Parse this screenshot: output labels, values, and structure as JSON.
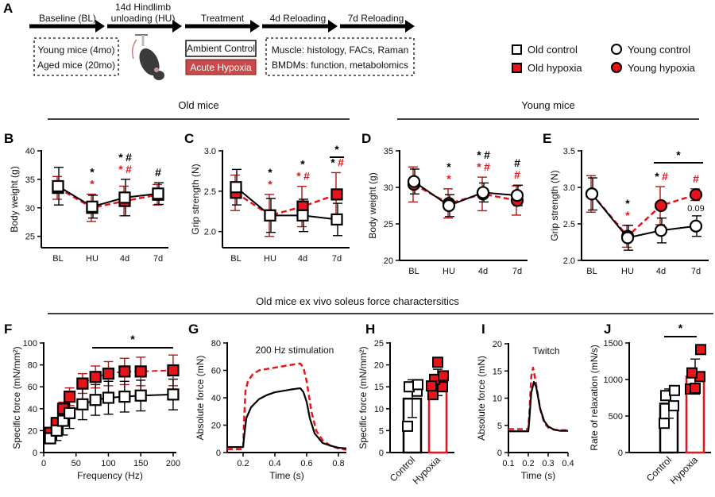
{
  "colors": {
    "control": "#000000",
    "hypoxia": "#e8141b",
    "hypoxia_err": "#b01818",
    "hypoxia_box": "#c94a4a"
  },
  "panel_a": {
    "letter": "A",
    "steps": [
      "Baseline (BL)",
      "14d Hindlimb",
      "unloading (HU)",
      "Treatment",
      "4d Reloading",
      "7d Reloading"
    ],
    "baseline_box": [
      "Young mice (4mo)",
      "Aged mice (20mo)"
    ],
    "treatment_options": [
      "Ambient Control",
      "Acute Hypoxia"
    ],
    "readout_box": [
      "Muscle: histology, FACs, Raman",
      "BMDMs: function, metabolomics"
    ],
    "image": "hindlimb-unloaded-mouse"
  },
  "legend": [
    {
      "label": "Old control",
      "marker": "square",
      "fill": "open"
    },
    {
      "label": "Old hypoxia",
      "marker": "square",
      "fill": "red"
    },
    {
      "label": "Young control",
      "marker": "circle",
      "fill": "open"
    },
    {
      "label": "Young hypoxia",
      "marker": "circle",
      "fill": "red"
    }
  ],
  "section_titles": {
    "old": "Old mice",
    "young": "Young mice",
    "exvivo": "Old mice ex vivo soleus force charactersitics"
  },
  "chart_data": [
    {
      "panel": "B",
      "type": "line",
      "ylabel": "Body weight (g)",
      "categories": [
        "BL",
        "HU",
        "4d",
        "7d"
      ],
      "ylim": [
        23,
        40
      ],
      "yticks": [
        25,
        30,
        35,
        40
      ],
      "marker": "square",
      "series": [
        {
          "name": "Old control",
          "values": [
            33.8,
            30.2,
            31.8,
            32.5
          ],
          "err": [
            3.3,
            2.0,
            3.2,
            1.9
          ]
        },
        {
          "name": "Old hypoxia",
          "values": [
            33.5,
            30.0,
            31.2,
            32.3
          ],
          "err": [
            2.0,
            2.4,
            2.6,
            1.8
          ]
        }
      ],
      "annotations": [
        {
          "cat": 1,
          "lines": [
            [
              [
                "*",
                "control"
              ]
            ],
            [
              [
                "*",
                "hypoxia"
              ]
            ]
          ]
        },
        {
          "cat": 2,
          "lines": [
            [
              [
                "*",
                "control"
              ],
              [
                "#",
                "control"
              ]
            ],
            [
              [
                "*",
                "hypoxia"
              ],
              [
                "#",
                "hypoxia"
              ]
            ]
          ]
        },
        {
          "cat": 3,
          "lines": [
            [
              [
                "#",
                "control"
              ]
            ]
          ]
        }
      ]
    },
    {
      "panel": "C",
      "type": "line",
      "ylabel": "Grip strength (N)",
      "categories": [
        "BL",
        "HU",
        "4d",
        "7d"
      ],
      "ylim": [
        1.8,
        3.0
      ],
      "yticks": [
        2.0,
        2.5,
        3.0
      ],
      "marker": "square",
      "series": [
        {
          "name": "Old control",
          "values": [
            2.55,
            2.2,
            2.2,
            2.15
          ],
          "err": [
            0.22,
            0.21,
            0.2,
            0.2
          ]
        },
        {
          "name": "Old hypoxia",
          "values": [
            2.48,
            2.2,
            2.31,
            2.46
          ],
          "err": [
            0.22,
            0.26,
            0.25,
            0.27
          ]
        }
      ],
      "annotations": [
        {
          "cat": 1,
          "lines": [
            [
              [
                "*",
                "control"
              ]
            ],
            [
              [
                "*",
                "hypoxia"
              ]
            ]
          ]
        },
        {
          "cat": 2,
          "lines": [
            [
              [
                "*",
                "control"
              ]
            ],
            [
              [
                "*",
                "hypoxia"
              ],
              [
                "#",
                "hypoxia"
              ]
            ]
          ]
        },
        {
          "cat": 3,
          "lines": [
            [
              [
                "*",
                "control"
              ],
              [
                "#",
                "hypoxia"
              ]
            ]
          ]
        }
      ],
      "brackets": [
        {
          "from": 3,
          "to": 3,
          "text": "*"
        }
      ]
    },
    {
      "panel": "D",
      "type": "line",
      "ylabel": "Body weight (g)",
      "categories": [
        "BL",
        "HU",
        "4d",
        "7d"
      ],
      "ylim": [
        20,
        35
      ],
      "yticks": [
        20,
        25,
        30,
        35
      ],
      "marker": "circle",
      "series": [
        {
          "name": "Young control",
          "values": [
            30.8,
            27.5,
            29.3,
            28.9
          ],
          "err": [
            1.7,
            1.5,
            1.3,
            1.4
          ]
        },
        {
          "name": "Young hypoxia",
          "values": [
            30.4,
            27.8,
            29.1,
            28.2
          ],
          "err": [
            2.4,
            2.0,
            2.3,
            2.0
          ]
        }
      ],
      "annotations": [
        {
          "cat": 1,
          "lines": [
            [
              [
                "*",
                "control"
              ]
            ],
            [
              [
                "*",
                "hypoxia"
              ]
            ]
          ]
        },
        {
          "cat": 2,
          "lines": [
            [
              [
                "*",
                "control"
              ],
              [
                "#",
                "control"
              ]
            ],
            [
              [
                "*",
                "hypoxia"
              ],
              [
                "#",
                "hypoxia"
              ]
            ]
          ]
        },
        {
          "cat": 3,
          "lines": [
            [
              [
                "#",
                "control"
              ]
            ],
            [
              [
                "#",
                "hypoxia"
              ]
            ]
          ]
        }
      ]
    },
    {
      "panel": "E",
      "type": "line",
      "ylabel": "Grip strength (N)",
      "categories": [
        "BL",
        "HU",
        "4d",
        "7d"
      ],
      "ylim": [
        2.0,
        3.5
      ],
      "yticks": [
        2.0,
        2.5,
        3.0,
        3.5
      ],
      "marker": "circle",
      "series": [
        {
          "name": "Young control",
          "values": [
            2.91,
            2.31,
            2.41,
            2.47
          ],
          "err": [
            0.22,
            0.17,
            0.17,
            0.14
          ]
        },
        {
          "name": "Young hypoxia",
          "values": [
            2.91,
            2.33,
            2.75,
            2.9
          ],
          "err": [
            0.25,
            0.15,
            0.26,
            0.08
          ]
        }
      ],
      "annotations": [
        {
          "cat": 1,
          "lines": [
            [
              [
                "*",
                "control"
              ]
            ],
            [
              [
                "*",
                "hypoxia"
              ]
            ]
          ]
        },
        {
          "cat": 2,
          "lines": [
            [
              [
                "*",
                "control"
              ],
              [
                "#",
                "hypoxia"
              ]
            ]
          ]
        },
        {
          "cat": 3,
          "lines": [
            [
              [
                "#",
                "hypoxia"
              ]
            ]
          ]
        }
      ],
      "value_labels": [
        {
          "cat": 3,
          "text": "0.09"
        }
      ],
      "brackets": [
        {
          "from": 2,
          "to": 3,
          "text": "*"
        }
      ]
    },
    {
      "panel": "F",
      "type": "scatter-line",
      "xlabel": "Frequency (Hz)",
      "ylabel": "Specific force (mN/mm²)",
      "xlim": [
        0,
        205
      ],
      "xticks": [
        0,
        50,
        100,
        150,
        200
      ],
      "ylim": [
        0,
        100
      ],
      "yticks": [
        0,
        20,
        40,
        60,
        80,
        100
      ],
      "marker": "square",
      "x": [
        10,
        20,
        30,
        40,
        60,
        80,
        100,
        125,
        150,
        200
      ],
      "series": [
        {
          "name": "Old control",
          "values": [
            13,
            20,
            29,
            36,
            44,
            48,
            50,
            51,
            52,
            53
          ],
          "err": [
            4,
            9,
            13,
            14,
            14,
            14,
            15,
            14,
            14,
            14
          ]
        },
        {
          "name": "Old hypoxia",
          "values": [
            18,
            27,
            40,
            51,
            63,
            69,
            72,
            74,
            74,
            75
          ],
          "err": [
            3,
            4,
            6,
            8,
            9,
            10,
            11,
            12,
            13,
            14
          ]
        }
      ],
      "brackets": [
        {
          "from": 75,
          "to": 200,
          "text": "*"
        }
      ]
    },
    {
      "panel": "G",
      "type": "line",
      "title": "200 Hz stimulation",
      "xlabel": "Time (s)",
      "ylabel": "Absolute force (mN)",
      "xlim": [
        0.1,
        0.85
      ],
      "xticks": [
        0.2,
        0.4,
        0.6,
        0.8
      ],
      "ylim": [
        0,
        80
      ],
      "yticks": [
        0,
        20,
        40,
        60,
        80
      ],
      "series": [
        {
          "name": "Old control",
          "x": [
            0.1,
            0.2,
            0.205,
            0.22,
            0.25,
            0.3,
            0.35,
            0.4,
            0.5,
            0.56,
            0.58,
            0.6,
            0.62,
            0.65,
            0.7,
            0.75,
            0.8,
            0.85
          ],
          "y": [
            4,
            4,
            10,
            25,
            33,
            39,
            42,
            44,
            46,
            47,
            44,
            37,
            25,
            14,
            7,
            5,
            3.5,
            3
          ]
        },
        {
          "name": "Old hypoxia",
          "x": [
            0.1,
            0.2,
            0.205,
            0.215,
            0.23,
            0.26,
            0.3,
            0.4,
            0.5,
            0.56,
            0.58,
            0.6,
            0.63,
            0.66,
            0.7,
            0.75,
            0.8,
            0.85
          ],
          "y": [
            2.5,
            2.5,
            20,
            45,
            52,
            57,
            60,
            62,
            64,
            65,
            62,
            52,
            30,
            16,
            9,
            5,
            3,
            2
          ]
        }
      ]
    },
    {
      "panel": "H",
      "type": "bar",
      "ylabel": "Specific force (mN/mm²)",
      "categories": [
        "Control",
        "Hypoxia"
      ],
      "ylim": [
        0,
        25
      ],
      "yticks": [
        0,
        5,
        10,
        15,
        20,
        25
      ],
      "values": [
        12.3,
        16.0
      ],
      "err": [
        4.3,
        3.0
      ],
      "points": [
        [
          6,
          14,
          15,
          15.5
        ],
        [
          13.2,
          15,
          16.7,
          17.5,
          20.6,
          15.2
        ]
      ]
    },
    {
      "panel": "I",
      "type": "line",
      "title": "Twitch",
      "xlabel": "Time (s)",
      "ylabel": "Absolute force (mN)",
      "xlim": [
        0.1,
        0.4
      ],
      "xticks": [
        0.1,
        0.2,
        0.3,
        0.4
      ],
      "ylim": [
        0,
        20
      ],
      "yticks": [
        0,
        5,
        10,
        15,
        20
      ],
      "series": [
        {
          "name": "Old control",
          "x": [
            0.1,
            0.2,
            0.205,
            0.215,
            0.228,
            0.24,
            0.26,
            0.28,
            0.3,
            0.33,
            0.36,
            0.4
          ],
          "y": [
            3.9,
            3.9,
            6,
            11,
            13,
            12,
            8,
            5.8,
            4.8,
            4.2,
            4,
            4
          ]
        },
        {
          "name": "Old hypoxia",
          "x": [
            0.1,
            0.2,
            0.205,
            0.215,
            0.224,
            0.235,
            0.26,
            0.28,
            0.3,
            0.33,
            0.36,
            0.4
          ],
          "y": [
            4.3,
            4.3,
            7,
            14,
            15.6,
            13.5,
            8,
            5.5,
            4.6,
            4.2,
            4.1,
            4.1
          ]
        }
      ]
    },
    {
      "panel": "J",
      "type": "bar",
      "ylabel": "Rate of relaxation (mN/s)",
      "categories": [
        "Control",
        "Hypoxia"
      ],
      "ylim": [
        0,
        1500
      ],
      "yticks": [
        0,
        500,
        1000,
        1500
      ],
      "values": [
        670,
        1040
      ],
      "err": [
        200,
        240
      ],
      "points": [
        [
          400,
          640,
          780,
          850
        ],
        [
          870,
          1040,
          1090,
          1410,
          880
        ]
      ],
      "brackets": [
        {
          "from": 0,
          "to": 1,
          "text": "*"
        }
      ]
    }
  ]
}
